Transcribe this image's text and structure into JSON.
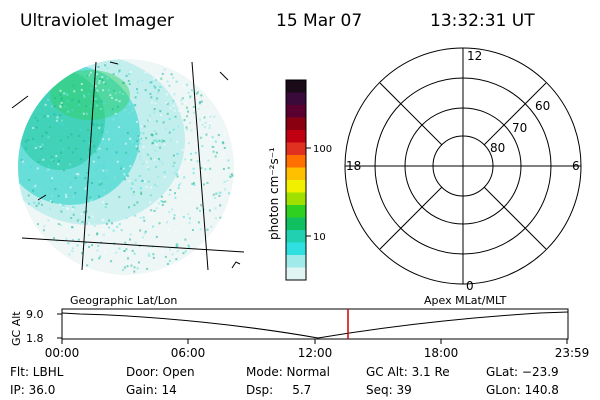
{
  "header": {
    "title": "Ultraviolet Imager",
    "date": "15 Mar 07",
    "time": "13:32:31 UT"
  },
  "colorbar": {
    "unit_label": "photon cm⁻²s⁻¹",
    "ticks": [
      "100",
      "10"
    ],
    "colors": [
      "#1a0a1a",
      "#3a0a3a",
      "#5a0030",
      "#8a0010",
      "#c00010",
      "#e03020",
      "#ff7000",
      "#ffc000",
      "#f0f000",
      "#a0e000",
      "#30d020",
      "#10c060",
      "#20d0b0",
      "#30e0e0",
      "#a0eaea",
      "#e0f4f4"
    ]
  },
  "polar": {
    "mlt_labels": {
      "top": "12",
      "left": "18",
      "right": "6",
      "bottom": "0"
    },
    "lat_labels": [
      "60",
      "70",
      "80"
    ]
  },
  "timeline": {
    "left_title": "Geographic Lat/Lon",
    "right_title": "Apex MLat/MLT",
    "y_axis_label": "GC Alt",
    "y_ticks": [
      "9.0",
      "1.8"
    ],
    "x_ticks": [
      "00:00",
      "06:00",
      "12:00",
      "18:00",
      "23:59"
    ],
    "accent_color": "#d00000"
  },
  "status": {
    "flt": "Flt: LBHL",
    "ip": "IP: 36.0",
    "door": "Door: Open",
    "gain": "Gain: 14",
    "mode": "Mode: Normal",
    "dsp": "Dsp:     5.7",
    "gcalt": "GC Alt: 3.1 Re",
    "seq": "Seq: 39",
    "glat": "GLat: −23.9",
    "glon": "GLon: 140.8"
  }
}
